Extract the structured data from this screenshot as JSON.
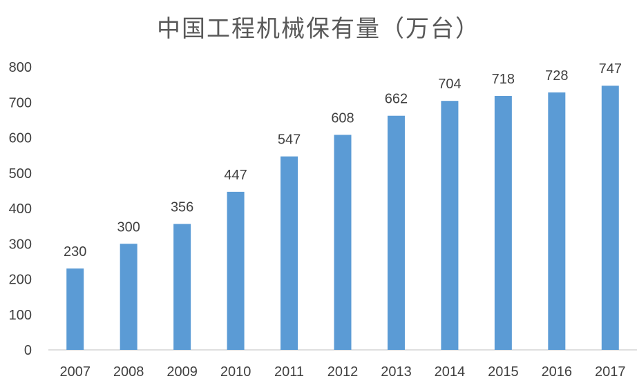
{
  "chart_data": {
    "type": "bar",
    "title": "中国工程机械保有量（万台）",
    "categories": [
      "2007",
      "2008",
      "2009",
      "2010",
      "2011",
      "2012",
      "2013",
      "2014",
      "2015",
      "2016",
      "2017"
    ],
    "values": [
      230,
      300,
      356,
      447,
      547,
      608,
      662,
      704,
      718,
      728,
      747
    ],
    "y_ticks": [
      0,
      100,
      200,
      300,
      400,
      500,
      600,
      700,
      800
    ],
    "ylim": [
      0,
      800
    ],
    "xlabel": "",
    "ylabel": "",
    "grid": false,
    "legend": "none",
    "data_labels": true,
    "bar_color": "#5B9BD5",
    "axis_color": "#BFBFBF"
  }
}
